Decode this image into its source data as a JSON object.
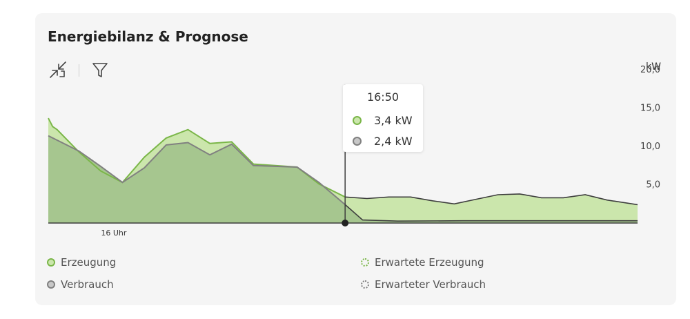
{
  "card": {
    "title": "Energiebilanz & Prognose"
  },
  "toolbar": {
    "collapse_icon": "collapse-arrows-icon",
    "filter_icon": "filter-icon"
  },
  "colors": {
    "generation": "#7ab648",
    "generation_fill": "#cbe6ac",
    "consumption": "#808080",
    "consumption_fill": "#a6c68f",
    "line_dark": "#3d3d3d",
    "card_bg": "#f5f5f5"
  },
  "chart_data": {
    "type": "area",
    "unit": "kW",
    "ylim": [
      0,
      22
    ],
    "yticks": [
      {
        "value": 5,
        "label": "5,0"
      },
      {
        "value": 10,
        "label": "10,0"
      },
      {
        "value": 15,
        "label": "15,0"
      },
      {
        "value": 20,
        "label": "20,0"
      }
    ],
    "xlim": [
      0,
      135
    ],
    "xticks": [
      {
        "value": 15,
        "label": "16 Uhr"
      }
    ],
    "current_x": 68,
    "series": [
      {
        "name": "Erzeugung",
        "kind": "actual",
        "points": [
          [
            0,
            13.7
          ],
          [
            1,
            12.6
          ],
          [
            2,
            12.2
          ],
          [
            7,
            9.3
          ],
          [
            12,
            6.8
          ],
          [
            17,
            5.3
          ],
          [
            22,
            8.6
          ],
          [
            27,
            11.1
          ],
          [
            32,
            12.2
          ],
          [
            37,
            10.4
          ],
          [
            42,
            10.6
          ],
          [
            47,
            7.7
          ],
          [
            57,
            7.3
          ],
          [
            62,
            5.1
          ],
          [
            68,
            3.4
          ]
        ]
      },
      {
        "name": "Erwartete Erzeugung",
        "kind": "forecast",
        "points": [
          [
            68,
            3.4
          ],
          [
            73,
            3.2
          ],
          [
            78,
            3.4
          ],
          [
            83,
            3.4
          ],
          [
            88,
            2.9
          ],
          [
            93,
            2.5
          ],
          [
            98,
            3.1
          ],
          [
            103,
            3.7
          ],
          [
            108,
            3.8
          ],
          [
            113,
            3.3
          ],
          [
            118,
            3.3
          ],
          [
            123,
            3.7
          ],
          [
            128,
            3.0
          ],
          [
            135,
            2.4
          ]
        ]
      },
      {
        "name": "Verbrauch",
        "kind": "actual",
        "points": [
          [
            0,
            11.4
          ],
          [
            7,
            9.4
          ],
          [
            12,
            7.4
          ],
          [
            17,
            5.3
          ],
          [
            22,
            7.2
          ],
          [
            27,
            10.2
          ],
          [
            32,
            10.5
          ],
          [
            37,
            8.9
          ],
          [
            42,
            10.3
          ],
          [
            47,
            7.5
          ],
          [
            57,
            7.3
          ],
          [
            62,
            5.3
          ],
          [
            68,
            2.4
          ]
        ]
      },
      {
        "name": "Erwarteter Verbrauch",
        "kind": "forecast",
        "points": [
          [
            68,
            2.4
          ],
          [
            72,
            0.4
          ],
          [
            80,
            0.25
          ],
          [
            95,
            0.3
          ],
          [
            110,
            0.3
          ],
          [
            125,
            0.3
          ],
          [
            135,
            0.3
          ]
        ]
      }
    ],
    "tooltip": {
      "time": "16:50",
      "rows": [
        {
          "series": "Erzeugung",
          "label": "3,4 kW"
        },
        {
          "series": "Verbrauch",
          "label": "2,4 kW"
        }
      ]
    }
  },
  "legend": [
    {
      "label": "Erzeugung",
      "style": "solid",
      "color": "#7ab648"
    },
    {
      "label": "Verbrauch",
      "style": "solid",
      "color": "#808080"
    },
    {
      "label": "Erwartete Erzeugung",
      "style": "dotted",
      "color": "#7ab648"
    },
    {
      "label": "Erwarteter Verbrauch",
      "style": "dotted",
      "color": "#808080"
    }
  ]
}
